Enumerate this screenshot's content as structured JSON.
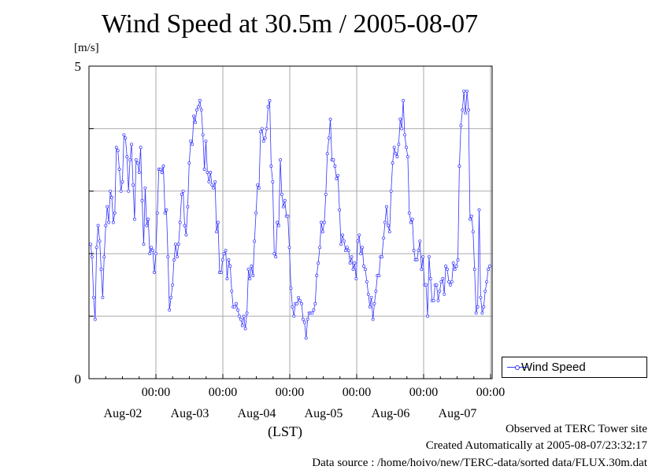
{
  "chart_data": {
    "type": "line",
    "title": "Wind Speed at 30.5m / 2005-08-07",
    "ylabel": "[m/s]",
    "xlabel": "(LST)",
    "ylim": [
      0,
      5
    ],
    "y_tick_labels": [
      "0",
      "5"
    ],
    "x_time_label": "00:00",
    "x_ticks": [
      "Aug-02",
      "Aug-03",
      "Aug-04",
      "Aug-05",
      "Aug-06",
      "Aug-07"
    ],
    "grid": true,
    "legend_position": "right-bottom",
    "series": [
      {
        "name": "Wind Speed",
        "color": "#3333ff",
        "x_start": "2005-08-01 02:00",
        "x_step_hours": 0.5,
        "values": [
          2.15,
          1.95,
          1.3,
          0.95,
          2.1,
          2.45,
          2.2,
          1.75,
          1.3,
          1.95,
          2.45,
          2.75,
          2.5,
          3.0,
          2.9,
          2.5,
          2.65,
          3.7,
          3.65,
          3.35,
          3.0,
          3.15,
          3.9,
          3.85,
          3.55,
          3.0,
          3.5,
          3.75,
          3.1,
          2.55,
          3.5,
          3.45,
          3.3,
          3.7,
          2.85,
          2.15,
          3.05,
          2.45,
          2.55,
          2.0,
          2.1,
          2.05,
          1.7,
          2.0,
          2.65,
          3.35,
          3.35,
          3.3,
          3.4,
          2.65,
          2.7,
          1.95,
          1.1,
          1.3,
          1.5,
          1.9,
          2.15,
          1.95,
          2.15,
          2.5,
          2.95,
          3.0,
          2.45,
          2.3,
          2.75,
          3.45,
          3.8,
          3.75,
          4.2,
          4.1,
          4.3,
          4.35,
          4.45,
          4.3,
          3.9,
          3.35,
          3.8,
          3.3,
          3.15,
          3.3,
          3.1,
          3.05,
          3.15,
          2.35,
          2.5,
          1.7,
          1.7,
          1.9,
          2.0,
          2.05,
          1.6,
          1.9,
          1.8,
          1.4,
          1.15,
          1.15,
          1.2,
          1.1,
          1.0,
          0.95,
          0.85,
          1.0,
          0.8,
          1.05,
          1.75,
          1.6,
          1.8,
          1.65,
          2.2,
          2.65,
          3.1,
          3.05,
          3.95,
          4.0,
          3.8,
          3.85,
          4.0,
          4.35,
          4.45,
          3.4,
          3.15,
          2.0,
          1.95,
          2.5,
          2.45,
          3.5,
          2.95,
          2.75,
          2.85,
          2.6,
          2.6,
          2.1,
          1.45,
          1.15,
          1.0,
          1.2,
          1.2,
          1.3,
          1.25,
          1.2,
          0.95,
          0.9,
          0.65,
          0.95,
          1.05,
          1.05,
          1.05,
          1.1,
          1.2,
          1.65,
          1.85,
          2.1,
          2.5,
          2.35,
          2.5,
          2.95,
          3.6,
          3.85,
          4.15,
          3.5,
          3.5,
          3.4,
          3.2,
          3.25,
          2.7,
          2.15,
          2.3,
          2.2,
          2.05,
          2.1,
          2.05,
          1.85,
          1.95,
          1.75,
          1.85,
          1.6,
          2.2,
          2.3,
          2.0,
          2.1,
          1.8,
          1.75,
          1.55,
          1.35,
          1.15,
          1.3,
          0.95,
          1.2,
          1.4,
          1.65,
          1.65,
          1.95,
          1.95,
          2.25,
          2.5,
          2.75,
          2.45,
          2.35,
          3.0,
          3.45,
          3.7,
          3.6,
          3.55,
          3.75,
          4.15,
          4.0,
          4.45,
          3.9,
          3.7,
          3.55,
          2.65,
          2.5,
          2.55,
          2.05,
          1.9,
          1.9,
          2.05,
          2.2,
          1.75,
          1.95,
          1.5,
          1.5,
          1.0,
          1.95,
          1.6,
          1.25,
          1.25,
          1.5,
          1.5,
          1.25,
          1.4,
          1.55,
          1.6,
          1.35,
          1.8,
          1.75,
          1.55,
          1.5,
          1.55,
          1.85,
          1.75,
          1.8,
          1.9,
          3.4,
          4.05,
          4.3,
          4.6,
          4.25,
          4.6,
          4.3,
          2.55,
          2.6,
          2.35,
          1.75,
          1.05,
          1.15,
          2.7,
          1.3,
          1.05,
          1.15,
          1.4,
          1.55,
          1.75,
          1.8
        ]
      }
    ]
  },
  "footer": {
    "line1": "Observed at TERC Tower site",
    "line2": "Created Automatically at 2005-08-07/23:32:17",
    "line3": "Data source : /home/hoivo/new/TERC-data/sorted  data/FLUX.30m.dat"
  }
}
